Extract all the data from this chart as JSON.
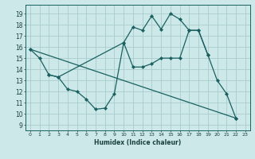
{
  "xlabel": "Humidex (Indice chaleur)",
  "xlim": [
    -0.5,
    23.5
  ],
  "ylim": [
    8.5,
    19.8
  ],
  "yticks": [
    9,
    10,
    11,
    12,
    13,
    14,
    15,
    16,
    17,
    18,
    19
  ],
  "xticks": [
    0,
    1,
    2,
    3,
    4,
    5,
    6,
    7,
    8,
    9,
    10,
    11,
    12,
    13,
    14,
    15,
    16,
    17,
    18,
    19,
    20,
    21,
    22,
    23
  ],
  "xtick_labels": [
    "0",
    "1",
    "2",
    "3",
    "4",
    "5",
    "6",
    "7",
    "8",
    "9",
    "10",
    "11",
    "12",
    "13",
    "14",
    "15",
    "16",
    "17",
    "18",
    "19",
    "20",
    "21",
    "22",
    "23"
  ],
  "bg_color": "#cce8e8",
  "grid_color": "#aacccc",
  "line_color": "#1a6060",
  "line1_x": [
    0,
    1,
    2,
    3,
    4,
    5,
    6,
    7,
    8,
    9,
    10,
    11,
    12,
    13,
    14,
    15,
    16,
    17,
    18,
    19,
    20,
    21,
    22
  ],
  "line1_y": [
    15.8,
    15.0,
    13.5,
    13.3,
    12.2,
    12.0,
    11.3,
    10.4,
    10.5,
    11.8,
    16.4,
    17.8,
    17.5,
    18.8,
    17.6,
    19.0,
    18.5,
    17.5,
    17.5,
    15.3,
    13.0,
    11.8,
    9.6
  ],
  "line2_x": [
    2,
    3,
    10,
    11,
    12,
    13,
    14,
    15,
    16,
    17,
    18,
    19
  ],
  "line2_y": [
    13.5,
    13.3,
    16.4,
    14.2,
    14.2,
    14.5,
    15.0,
    15.0,
    15.0,
    17.5,
    17.5,
    15.3
  ],
  "line3_x": [
    0,
    22
  ],
  "line3_y": [
    15.8,
    9.6
  ]
}
